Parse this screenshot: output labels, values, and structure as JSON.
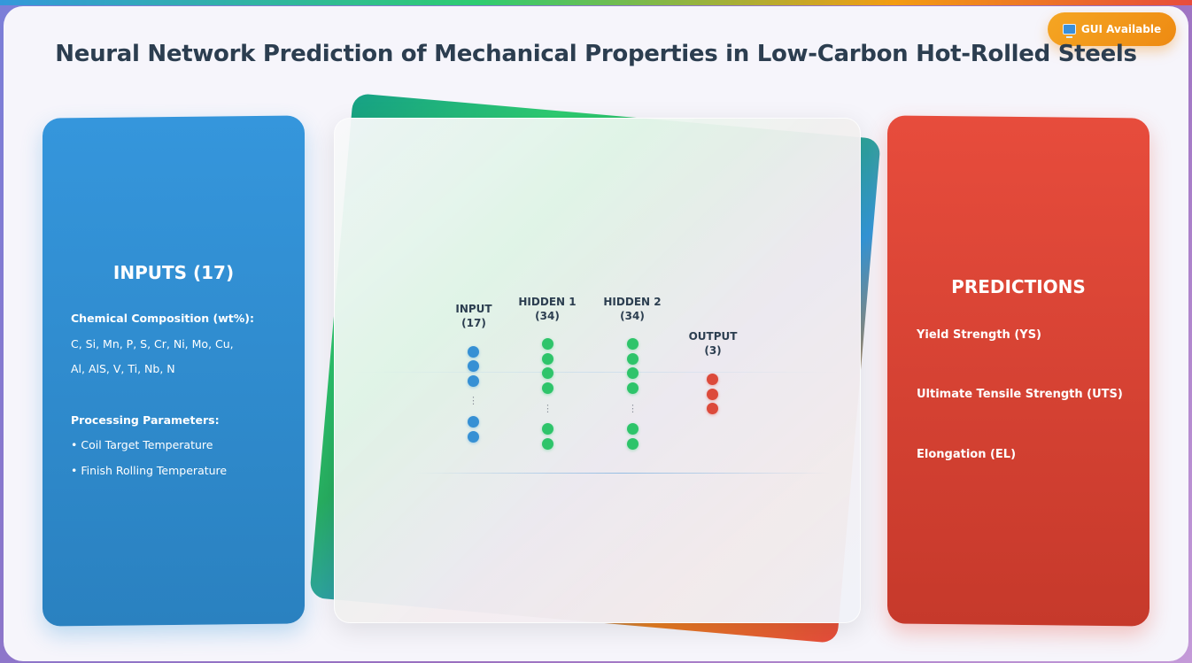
{
  "header": {
    "badge_label": "GUI Available",
    "badge_icon": "monitor-icon",
    "title": "Neural Network Prediction of Mechanical Properties in Low-Carbon Hot-Rolled Steels"
  },
  "inputs_panel": {
    "heading": "INPUTS (17)",
    "chem_heading": "Chemical Composition (wt%):",
    "chem_line1": "C, Si, Mn, P, S, Cr, Ni, Mo, Cu,",
    "chem_line2": "Al, AlS, V, Ti, Nb, N",
    "proc_heading": "Processing Parameters:",
    "proc_items": [
      "• Coil Target Temperature",
      "• Finish Rolling Temperature"
    ]
  },
  "network": {
    "layers": [
      {
        "name": "INPUT",
        "count": "(17)",
        "color": "#3498db"
      },
      {
        "name": "HIDDEN 1",
        "count": "(34)",
        "color": "#2ecc71"
      },
      {
        "name": "HIDDEN 2",
        "count": "(34)",
        "color": "#2ecc71"
      },
      {
        "name": "OUTPUT",
        "count": "(3)",
        "color": "#e74c3c"
      }
    ],
    "ellipsis": "⋮"
  },
  "predictions_panel": {
    "heading": "PREDICTIONS",
    "items": [
      "Yield Strength (YS)",
      "Ultimate Tensile Strength (UTS)",
      "Elongation (EL)"
    ]
  },
  "colors": {
    "inputs": "#3498db",
    "hidden": "#2ecc71",
    "outputs": "#e74c3c",
    "badge": "#f39c12",
    "title": "#2c3e50"
  }
}
